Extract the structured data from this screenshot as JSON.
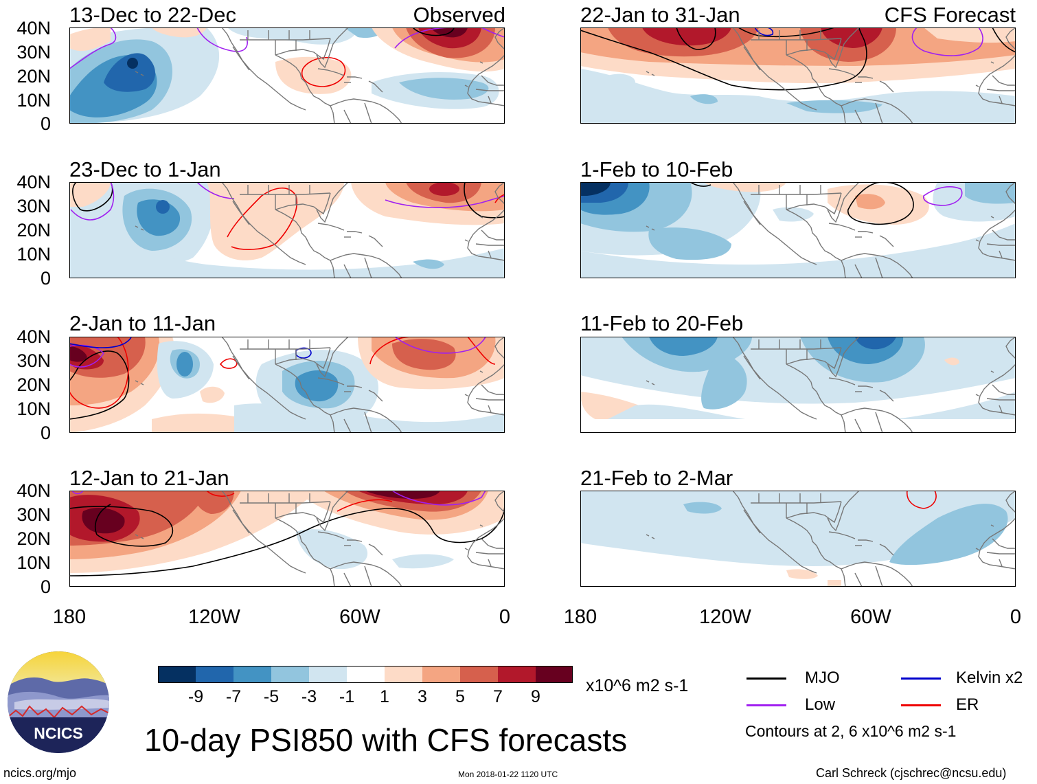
{
  "header": {
    "observed_label": "Observed",
    "forecast_label": "CFS Forecast"
  },
  "panels": [
    {
      "title": "13-Dec to 22-Dec",
      "kind": "observed"
    },
    {
      "title": "23-Dec to 1-Jan",
      "kind": "observed"
    },
    {
      "title": "2-Jan to 11-Jan",
      "kind": "observed"
    },
    {
      "title": "12-Jan to 21-Jan",
      "kind": "observed"
    },
    {
      "title": "22-Jan to 31-Jan",
      "kind": "forecast"
    },
    {
      "title": "1-Feb to 10-Feb",
      "kind": "forecast"
    },
    {
      "title": "11-Feb to 20-Feb",
      "kind": "forecast"
    },
    {
      "title": "21-Feb to 2-Mar",
      "kind": "forecast"
    }
  ],
  "axes": {
    "y_ticks": [
      "40N",
      "30N",
      "20N",
      "10N",
      "0"
    ],
    "x_ticks": [
      "180",
      "120W",
      "60W",
      "0"
    ]
  },
  "colorbar": {
    "labels": [
      "-9",
      "-7",
      "-5",
      "-3",
      "-1",
      "1",
      "3",
      "5",
      "7",
      "9"
    ],
    "colors": [
      "#053061",
      "#2166ac",
      "#4393c3",
      "#92c5de",
      "#d1e5f0",
      "#ffffff",
      "#fddbc7",
      "#f4a582",
      "#d6604d",
      "#b2182b",
      "#67001f"
    ],
    "units": "x10^6 m2 s-1"
  },
  "title": "10-day PSI850 with CFS forecasts",
  "legend": {
    "items": [
      {
        "label": "MJO",
        "color": "#000000"
      },
      {
        "label": "Kelvin x2",
        "color": "#0000cc"
      },
      {
        "label": "Low",
        "color": "#a020f0"
      },
      {
        "label": "ER",
        "color": "#ee0000"
      }
    ],
    "note": "Contours at 2, 6 x10^6 m2 s-1"
  },
  "logo": {
    "text": "NCICS"
  },
  "footer": {
    "url": "ncics.org/mjo",
    "timestamp": "Mon 2018-01-22 1120 UTC",
    "credit": "Carl Schreck (cjschrec@ncsu.edu)"
  }
}
